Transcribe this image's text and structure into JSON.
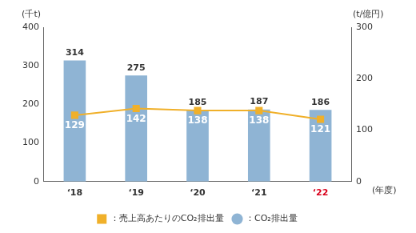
{
  "chart_data": {
    "type": "bar",
    "categories": [
      "‘18",
      "‘19",
      "‘20",
      "‘21",
      "‘22"
    ],
    "series": [
      {
        "name": "：CO₂排出量",
        "type": "bar",
        "color": "#8fb4d4",
        "values": [
          314,
          275,
          185,
          187,
          186
        ]
      },
      {
        "name": "：売上高あたりのCO₂排出量",
        "type": "line",
        "axis": "y2",
        "color": "#f0b02a",
        "marker": "square",
        "values": [
          129,
          142,
          138,
          138,
          121
        ]
      }
    ],
    "y_label": "(千t)",
    "y2_label": "(t/億円)",
    "x_label": "(年度)",
    "ylim": [
      0,
      400
    ],
    "yticks": [
      0,
      100,
      200,
      300,
      400
    ],
    "y2lim": [
      0,
      300
    ],
    "y2ticks": [
      0,
      100,
      200,
      300
    ],
    "grid": false,
    "legend": "bottom",
    "data_labels": true
  }
}
